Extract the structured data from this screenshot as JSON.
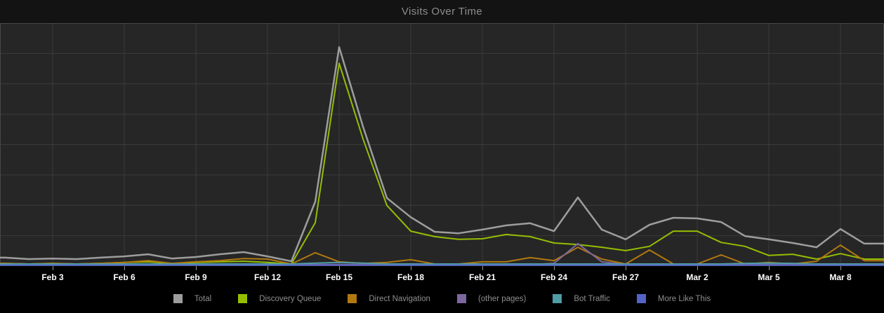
{
  "title": "Visits Over Time",
  "colors": {
    "header_bg": "#131313",
    "plot_bg": "#262626",
    "footer_bg": "#000000",
    "grid": "#3b3b3b",
    "plot_border": "#474747",
    "axis_tick": "#8f8f8f",
    "axis_label": "#ffffff",
    "title_text": "#8d8d8d",
    "legend_label": "#8e8e8e"
  },
  "chart_data": {
    "type": "line",
    "title": "Visits Over Time",
    "x": [
      "Feb 1",
      "Feb 2",
      "Feb 3",
      "Feb 4",
      "Feb 5",
      "Feb 6",
      "Feb 7",
      "Feb 8",
      "Feb 9",
      "Feb 10",
      "Feb 11",
      "Feb 12",
      "Feb 13",
      "Feb 14",
      "Feb 15",
      "Feb 16",
      "Feb 17",
      "Feb 18",
      "Feb 19",
      "Feb 20",
      "Feb 21",
      "Feb 22",
      "Feb 23",
      "Feb 24",
      "Feb 25",
      "Feb 26",
      "Feb 27",
      "Feb 28",
      "Mar 1",
      "Mar 2",
      "Mar 3",
      "Mar 4",
      "Mar 5",
      "Mar 6",
      "Mar 7",
      "Mar 8",
      "Mar 9"
    ],
    "x_tick_indices": [
      2,
      5,
      8,
      11,
      14,
      17,
      20,
      23,
      26,
      29,
      32,
      35
    ],
    "x_tick_labels": [
      "Feb 3",
      "Feb 6",
      "Feb 9",
      "Feb 12",
      "Feb 15",
      "Feb 18",
      "Feb 21",
      "Feb 24",
      "Feb 27",
      "Mar 2",
      "Mar 5",
      "Mar 8"
    ],
    "ylabel": "",
    "xlabel": "",
    "ylim": [
      0,
      8
    ],
    "y_units": "relative visits (no y-axis labels shown in chart)",
    "grid": true,
    "legend_position": "bottom",
    "series": [
      {
        "name": "Total",
        "color": "#9d9d9d",
        "width": 2.5,
        "values": [
          0.28,
          0.23,
          0.25,
          0.23,
          0.28,
          0.32,
          0.39,
          0.25,
          0.3,
          0.39,
          0.46,
          0.32,
          0.16,
          2.12,
          7.21,
          4.59,
          2.24,
          1.61,
          1.13,
          1.08,
          1.2,
          1.34,
          1.41,
          1.15,
          2.26,
          1.2,
          0.88,
          1.36,
          1.59,
          1.57,
          1.45,
          0.99,
          0.88,
          0.76,
          0.62,
          1.22,
          0.74
        ]
      },
      {
        "name": "Discovery Queue",
        "color": "#95be02",
        "width": 2,
        "values": [
          0.09,
          0.07,
          0.09,
          0.07,
          0.09,
          0.12,
          0.14,
          0.09,
          0.12,
          0.14,
          0.16,
          0.12,
          0.07,
          1.43,
          6.68,
          4.19,
          2.0,
          1.15,
          0.97,
          0.88,
          0.9,
          1.04,
          0.97,
          0.76,
          0.71,
          0.62,
          0.51,
          0.65,
          1.15,
          1.15,
          0.78,
          0.65,
          0.35,
          0.39,
          0.23,
          0.41,
          0.23
        ]
      },
      {
        "name": "Direct Navigation",
        "color": "#b1790f",
        "width": 2,
        "values": [
          0.09,
          0.07,
          0.09,
          0.07,
          0.09,
          0.12,
          0.18,
          0.09,
          0.14,
          0.18,
          0.25,
          0.23,
          0.07,
          0.44,
          0.14,
          0.09,
          0.12,
          0.21,
          0.07,
          0.07,
          0.14,
          0.14,
          0.28,
          0.18,
          0.62,
          0.23,
          0.07,
          0.53,
          0.07,
          0.07,
          0.37,
          0.07,
          0.12,
          0.07,
          0.16,
          0.69,
          0.18
        ]
      },
      {
        "name": "(other pages)",
        "color": "#7c67a1",
        "width": 2,
        "values": [
          0.05,
          0.05,
          0.05,
          0.05,
          0.05,
          0.05,
          0.05,
          0.05,
          0.05,
          0.05,
          0.05,
          0.05,
          0.05,
          0.05,
          0.05,
          0.05,
          0.05,
          0.05,
          0.05,
          0.05,
          0.05,
          0.05,
          0.05,
          0.09,
          0.74,
          0.14,
          0.05,
          0.05,
          0.05,
          0.05,
          0.05,
          0.05,
          0.05,
          0.05,
          0.05,
          0.05,
          0.05
        ]
      },
      {
        "name": "Bot Traffic",
        "color": "#4f9da6",
        "width": 2,
        "values": [
          0.07,
          0.07,
          0.07,
          0.07,
          0.07,
          0.07,
          0.07,
          0.07,
          0.07,
          0.07,
          0.07,
          0.07,
          0.07,
          0.1,
          0.12,
          0.1,
          0.07,
          0.07,
          0.07,
          0.07,
          0.07,
          0.07,
          0.07,
          0.07,
          0.07,
          0.07,
          0.07,
          0.07,
          0.07,
          0.07,
          0.07,
          0.09,
          0.1,
          0.09,
          0.07,
          0.07,
          0.07
        ]
      },
      {
        "name": "More Like This",
        "color": "#5463c6",
        "width": 2,
        "values": [
          0.03,
          0.03,
          0.03,
          0.03,
          0.03,
          0.03,
          0.03,
          0.03,
          0.03,
          0.03,
          0.03,
          0.03,
          0.03,
          0.03,
          0.03,
          0.03,
          0.03,
          0.03,
          0.03,
          0.03,
          0.03,
          0.03,
          0.03,
          0.03,
          0.03,
          0.03,
          0.03,
          0.03,
          0.03,
          0.03,
          0.03,
          0.03,
          0.03,
          0.03,
          0.03,
          0.03,
          0.03
        ]
      }
    ]
  }
}
